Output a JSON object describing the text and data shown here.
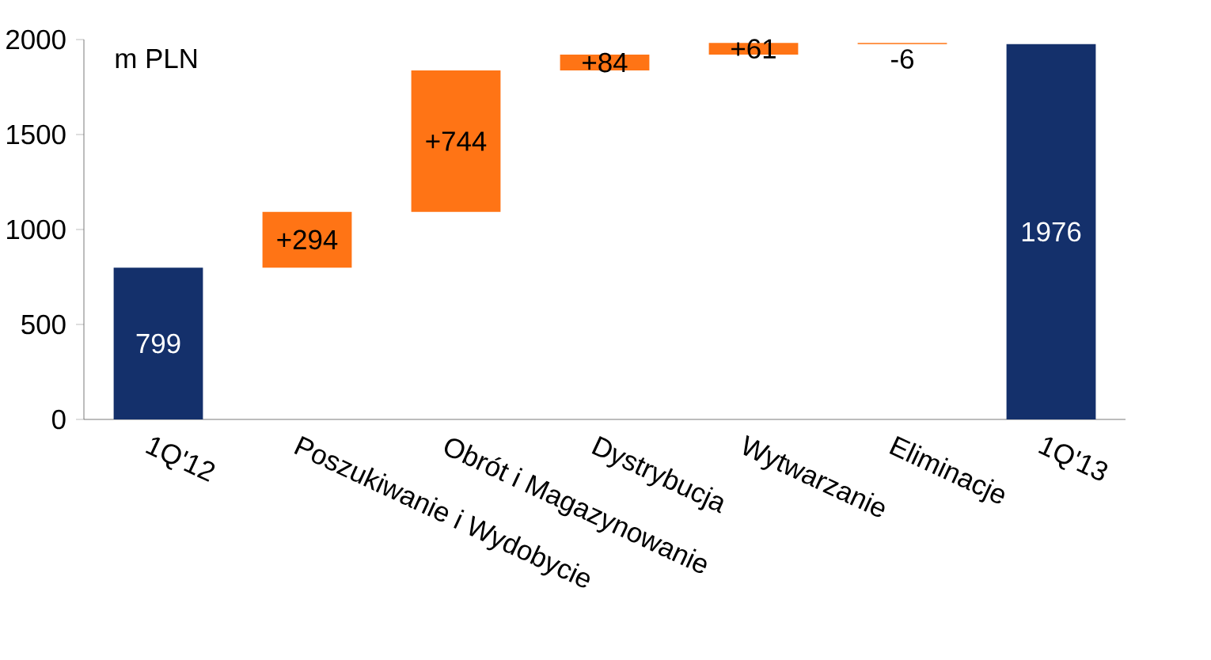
{
  "chart_data": {
    "type": "bar",
    "categories": [
      "1Q'12",
      "Poszukiwanie i Wydobycie",
      "Obrót i Magazynowanie",
      "Dystrybucja",
      "Wytwarzanie",
      "Eliminacje",
      "1Q'13"
    ],
    "values": [
      799,
      294,
      744,
      84,
      61,
      -6,
      1976
    ],
    "base": [
      0,
      799,
      1093,
      1837,
      1921,
      1982,
      0
    ],
    "value_labels": [
      "799",
      "+294",
      "+744",
      "+84",
      "+61",
      "-6",
      "1976"
    ],
    "colors": [
      "#14306b",
      "#ff7415",
      "#ff7415",
      "#ff7415",
      "#ff7415",
      "#ff7415",
      "#14306b"
    ],
    "ylim": [
      0,
      2000
    ],
    "yticks": [
      0,
      500,
      1000,
      1500,
      2000
    ],
    "annotations": [
      "m PLN"
    ]
  }
}
